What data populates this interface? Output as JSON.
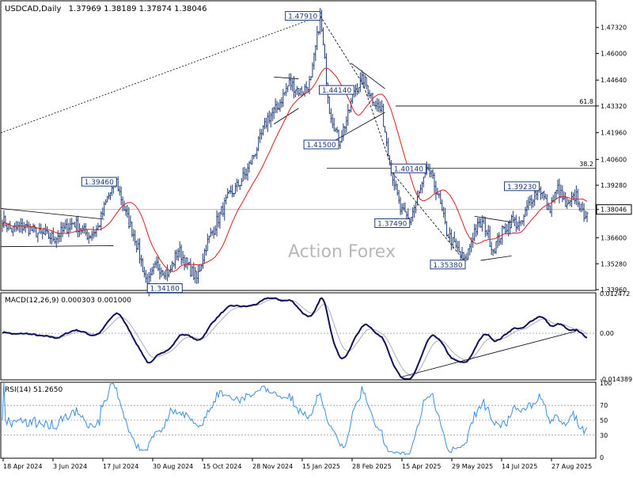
{
  "chart_data": [
    {
      "type": "candlestick",
      "symbol_line": "USDCAD,Daily",
      "ohlc_readout": "1.37969 1.38189 1.37874 1.38046",
      "watermark": "Action Forex",
      "ylim": [
        1.3396,
        1.486
      ],
      "y_ticks": [
        "1.47320",
        "1.46000",
        "1.44640",
        "1.43320",
        "1.41960",
        "1.40600",
        "1.39280",
        "1.38046",
        "1.36600",
        "1.35280",
        "1.33960"
      ],
      "y_tick_values": [
        1.4732,
        1.46,
        1.4464,
        1.4332,
        1.4196,
        1.406,
        1.3928,
        1.38046,
        1.366,
        1.3528,
        1.3396
      ],
      "current_price": "1.38046",
      "x_ticks": [
        "18 Apr 2024",
        "3 Jun 2024",
        "17 Jul 2024",
        "30 Aug 2024",
        "15 Oct 2024",
        "28 Nov 2024",
        "15 Jan 2025",
        "28 Feb 2025",
        "15 Apr 2025",
        "29 May 2025",
        "14 Jul 2025",
        "27 Aug 2025"
      ],
      "price_labels": [
        {
          "text": "1.47910",
          "value": 1.4791
        },
        {
          "text": "1.44140",
          "value": 1.4414
        },
        {
          "text": "1.41500",
          "value": 1.415
        },
        {
          "text": "1.40140",
          "value": 1.4014
        },
        {
          "text": "1.39460",
          "value": 1.3946
        },
        {
          "text": "1.39230",
          "value": 1.3923
        },
        {
          "text": "1.37490",
          "value": 1.3749
        },
        {
          "text": "1.35380",
          "value": 1.3538
        },
        {
          "text": "1.34180",
          "value": 1.3418
        }
      ],
      "fib_levels": [
        {
          "label": "61.8",
          "value": 1.4332
        },
        {
          "label": "38.2",
          "value": 1.4014
        }
      ],
      "series": [
        {
          "name": "",
          "color": "#1e3a78"
        },
        {
          "name": "",
          "color": "#d62020"
        }
      ]
    },
    {
      "type": "line",
      "title": "MACD(12,26,9) 0.000303 0.001000",
      "ylim": [
        -0.01439,
        0.01247
      ],
      "y_ticks": [
        "0.012472",
        "0.00",
        "-0.014389"
      ],
      "series": [
        {
          "name": "",
          "color": "#10105a"
        },
        {
          "name": "",
          "color": "#b0a8c8"
        }
      ]
    },
    {
      "type": "line",
      "title": "RSI(14) 51.2650",
      "ylim": [
        0,
        100
      ],
      "y_ticks": [
        "100",
        "70",
        "50",
        "30",
        "0"
      ],
      "levels": [
        70,
        50,
        30
      ],
      "series": [
        {
          "name": "",
          "color": "#3b8ede"
        }
      ]
    }
  ]
}
